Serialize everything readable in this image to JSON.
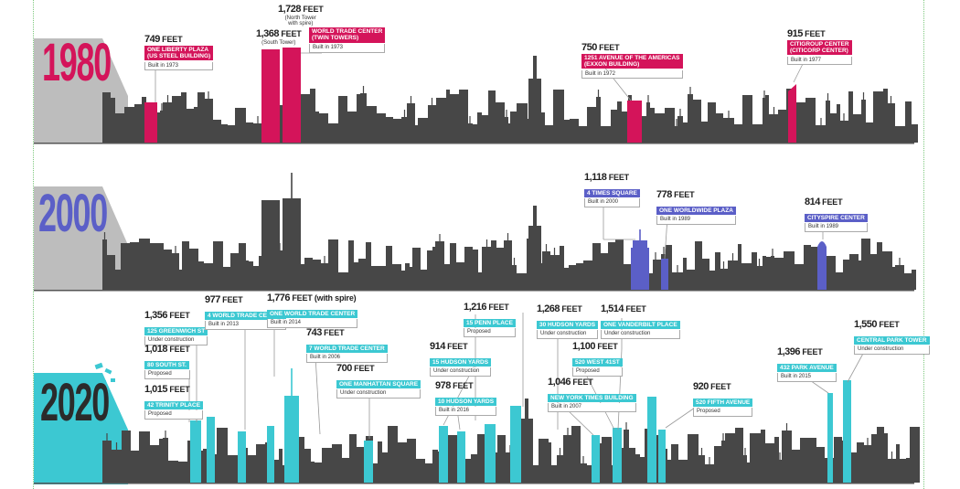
{
  "colors": {
    "skyline": "#474747",
    "y1980": "#d4145a",
    "y2000": "#5b5fc7",
    "y2020": "#3cc8d2",
    "ramp": "#bdbdbd"
  },
  "panels": [
    {
      "year": "1980",
      "callouts": [
        {
          "ft": "749",
          "unit": "FEET",
          "name": "ONE LIBERTY PLAZA\n(US STEEL BUILDING)",
          "note": "Built in 1973"
        },
        {
          "ft": "1,368",
          "unit": "FEET",
          "sub": "(South Tower)"
        },
        {
          "ft": "1,728",
          "unit": "FEET",
          "sub": "(North Tower\nwith spire)"
        },
        {
          "name": "WORLD TRADE CENTER\n(TWIN TOWERS)",
          "note": "Built in 1973"
        },
        {
          "ft": "750",
          "unit": "FEET",
          "name": "1251 AVENUE OF THE AMERICAS\n(EXXON BUILDING)",
          "note": "Built in 1972"
        },
        {
          "ft": "915",
          "unit": "FEET",
          "name": "CITIGROUP CENTER\n(CITICORP CENTER)",
          "note": "Built in 1977"
        }
      ]
    },
    {
      "year": "2000",
      "callouts": [
        {
          "ft": "1,118",
          "unit": "FEET",
          "name": "4 TIMES SQUARE",
          "note": "Built in 2000"
        },
        {
          "ft": "778",
          "unit": "FEET",
          "name": "ONE WORLDWIDE PLAZA",
          "note": "Built in 1989"
        },
        {
          "ft": "814",
          "unit": "FEET",
          "name": "CITYSPIRE CENTER",
          "note": "Built in 1989"
        }
      ]
    },
    {
      "year": "2020",
      "callouts": [
        {
          "ft": "1,356",
          "unit": "FEET",
          "name": "125 GREENWICH ST",
          "note": "Under construction"
        },
        {
          "ft": "977",
          "unit": "FEET",
          "name": "4 WORLD TRADE CENTER",
          "note": "Built in 2013"
        },
        {
          "ft": "1,776",
          "unit": "FEET (with spire)",
          "name": "ONE WORLD TRADE CENTER",
          "note": "Built in 2014"
        },
        {
          "ft": "1,018",
          "unit": "FEET",
          "name": "80 SOUTH ST.",
          "note": "Proposed"
        },
        {
          "ft": "743",
          "unit": "FEET",
          "name": "7 WORLD TRADE CENTER",
          "note": "Built in 2006"
        },
        {
          "ft": "1,015",
          "unit": "FEET",
          "name": "42 TRINITY PLACE",
          "note": "Proposed"
        },
        {
          "ft": "700",
          "unit": "FEET",
          "name": "ONE MANHATTAN SQUARE",
          "note": "Under construction"
        },
        {
          "ft": "1,216",
          "unit": "FEET",
          "name": "15 PENN PLACE",
          "note": "Proposed"
        },
        {
          "ft": "914",
          "unit": "FEET",
          "name": "15 HUDSON YARDS",
          "note": "Under construction"
        },
        {
          "ft": "978",
          "unit": "FEET",
          "name": "10 HUDSON YARDS",
          "note": "Built in 2016"
        },
        {
          "ft": "1,268",
          "unit": "FEET",
          "name": "30 HUDSON YARDS",
          "note": "Under construction"
        },
        {
          "ft": "1,514",
          "unit": "FEET",
          "name": "ONE VANDERBILT PLACE",
          "note": "Under construction"
        },
        {
          "ft": "1,100",
          "unit": "FEET",
          "name": "520 WEST 41ST",
          "note": "Proposed"
        },
        {
          "ft": "1,046",
          "unit": "FEET",
          "name": "NEW YORK TIMES BUILDING",
          "note": "Built in 2007"
        },
        {
          "ft": "920",
          "unit": "FEET",
          "name": "520 FIFTH AVENUE",
          "note": "Proposed"
        },
        {
          "ft": "1,396",
          "unit": "FEET",
          "name": "432 PARK AVENUE",
          "note": "Built in 2015"
        },
        {
          "ft": "1,550",
          "unit": "FEET",
          "name": "CENTRAL PARK TOWER",
          "note": "Under construction"
        }
      ]
    }
  ]
}
